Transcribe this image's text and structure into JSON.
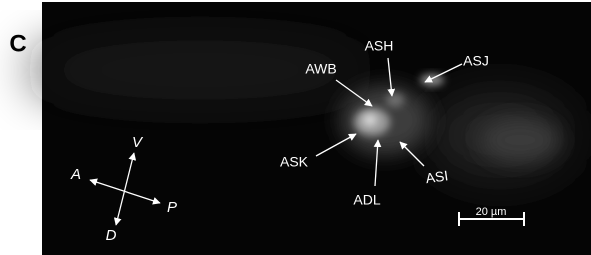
{
  "panel_label": "C",
  "neurons": [
    {
      "label": "ASH"
    },
    {
      "label": "ASJ"
    },
    {
      "label": "AWB"
    },
    {
      "label": "ASK"
    },
    {
      "label": "ADL"
    },
    {
      "label": "ASI"
    }
  ],
  "compass": {
    "anterior": "A",
    "posterior": "P",
    "ventral": "V",
    "dorsal": "D"
  },
  "scale_bar": {
    "label": "20 µm"
  }
}
